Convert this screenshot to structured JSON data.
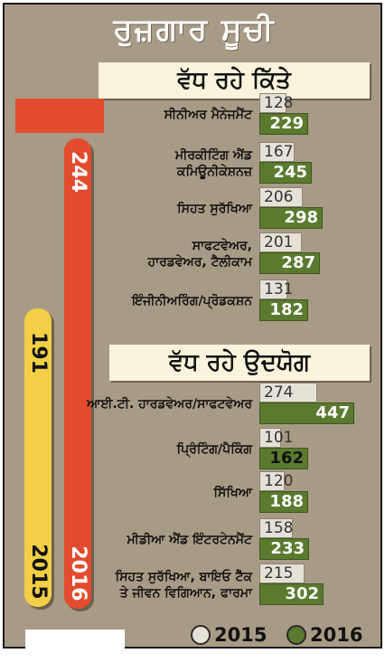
{
  "chart_data": {
    "type": "bar",
    "orientation": "horizontal",
    "title": "ਰੁਜ਼ਗਾਰ ਸੂਚੀ",
    "legend": [
      "2015",
      "2016"
    ],
    "legend_placement": "bottom-right",
    "colors": {
      "2015": "#e6e1d6",
      "2016": "#5a7a2e"
    },
    "totals": [
      {
        "name": "2015",
        "value": 191,
        "color": "#f2cf45"
      },
      {
        "name": "2016",
        "value": 244,
        "color": "#e24b2d"
      }
    ],
    "groups": [
      {
        "heading": "ਵੱਧ ਰਹੇ ਕਿੱਤੇ",
        "categories": [
          [
            "ਸੀਨੀਅਰ ਮੈਨੇਜਮੈਂਟ"
          ],
          [
            "ਮੀਰਕੀਟਿੰਗ ਐਂਡ",
            "ਕਮਿਊਨੀਕੇਸ਼ਨਜ਼"
          ],
          [
            "ਸਿਹਤ ਸੁਰੱਖਿਆ"
          ],
          [
            "ਸਾਫਟਵੇਅਰ,",
            "ਹਾਰਡਵੇਅਰ, ਟੈਲੀਕਾਮ"
          ],
          [
            "ਇੰਜੀਨੀਅਰਿੰਗ/ਪ੍ਰੋਡਕਸ਼ਨ"
          ]
        ],
        "series": [
          {
            "name": "2015",
            "values": [
              128,
              167,
              206,
              201,
              131
            ]
          },
          {
            "name": "2016",
            "values": [
              229,
              245,
              298,
              287,
              182
            ]
          }
        ]
      },
      {
        "heading": "ਵੱਧ ਰਹੇ ਉਦਯੋਗ",
        "categories": [
          [
            "ਆਈ.ਟੀ. ਹਾਰਡਵੇਅਰ/ਸਾਫਟਵੇਅਰ"
          ],
          [
            "ਪ੍ਰਿੰਟਿੰਗ/ਪੈਕਿੰਗ"
          ],
          [
            "ਸਿੱਖਿਆ"
          ],
          [
            "ਮੀਡੀਆ ਐਂਡ ਇੰਟਰਟੇਨਮੈਂਟ"
          ],
          [
            "ਸਿਹਤ ਸੁਰੱਖਿਆ, ਬਾਇਓ ਟੈੱਕ",
            "ਤੇ ਜੀਵਨ ਵਿਗਿਆਨ, ਫਾਰਮਾ"
          ]
        ],
        "series": [
          {
            "name": "2015",
            "values": [
              274,
              101,
              120,
              158,
              215
            ]
          },
          {
            "name": "2016",
            "values": [
              447,
              162,
              188,
              233,
              302
            ]
          }
        ]
      }
    ],
    "xlim": [
      0,
      460
    ]
  }
}
